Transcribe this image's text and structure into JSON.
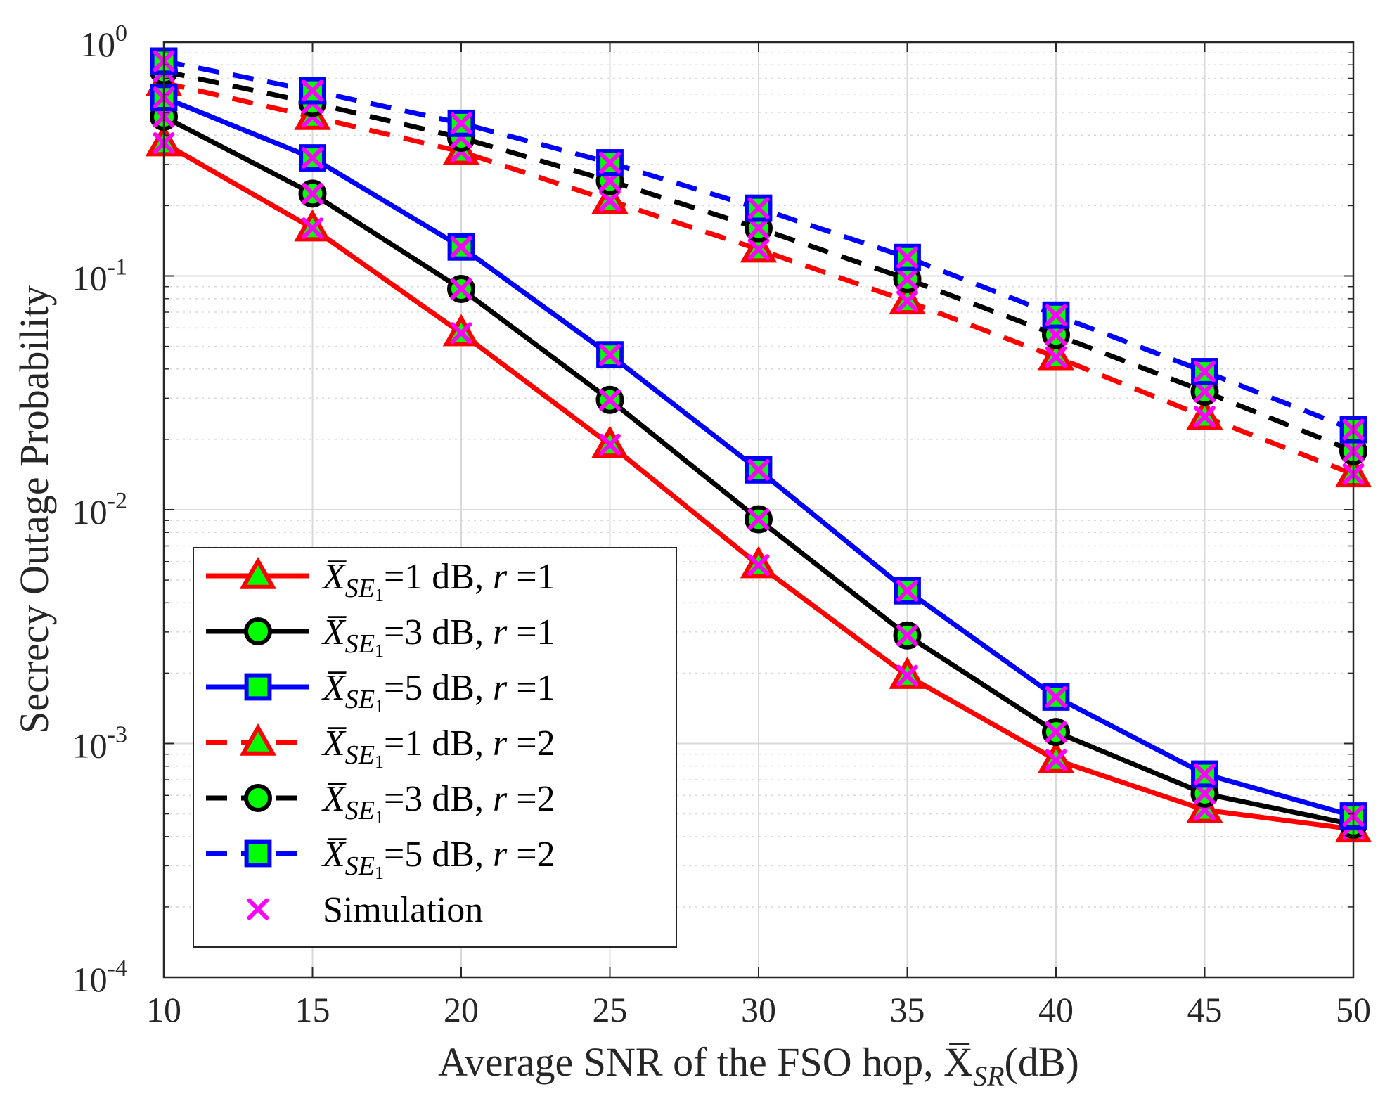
{
  "chart_data": {
    "type": "line",
    "title": "",
    "xlabel": "Average SNR of the FSO hop, X̅",
    "xlabel_sub": "SR",
    "xlabel_suffix": "(dB)",
    "ylabel": "Secrecy Outage Probability",
    "xlim": [
      10,
      50
    ],
    "ylim": [
      0.0001,
      1
    ],
    "yscale": "log",
    "grid": true,
    "legend_position": "bottom-left",
    "x": [
      10,
      15,
      20,
      25,
      30,
      35,
      40,
      45,
      50
    ],
    "x_ticks": [
      "10",
      "15",
      "20",
      "25",
      "30",
      "35",
      "40",
      "45",
      "50"
    ],
    "y_ticks": [
      {
        "value": 1,
        "base": "10",
        "exp": "0"
      },
      {
        "value": 0.1,
        "base": "10",
        "exp": "-1"
      },
      {
        "value": 0.01,
        "base": "10",
        "exp": "-2"
      },
      {
        "value": 0.001,
        "base": "10",
        "exp": "-3"
      },
      {
        "value": 0.0001,
        "base": "10",
        "exp": "-4"
      }
    ],
    "series": [
      {
        "name": "X̅ SE1 =1 dB, r =1",
        "label_pre": "X̅",
        "label_sub": "SE",
        "label_subsub": "1",
        "label_mid": "=1 dB, ",
        "label_var": "r",
        "label_post": " =1",
        "color": "#ff0000",
        "dash": "solid",
        "marker": "triangle",
        "values": [
          0.37,
          0.16,
          0.057,
          0.019,
          0.0058,
          0.00195,
          0.00085,
          0.00052,
          0.00043
        ]
      },
      {
        "name": "X̅ SE1 =3 dB, r =1",
        "label_pre": "X̅",
        "label_sub": "SE",
        "label_subsub": "1",
        "label_mid": "=3 dB, ",
        "label_var": "r",
        "label_post": " =1",
        "color": "#000000",
        "dash": "solid",
        "marker": "circle",
        "values": [
          0.48,
          0.225,
          0.088,
          0.0295,
          0.0091,
          0.0029,
          0.00112,
          0.00061,
          0.00045
        ]
      },
      {
        "name": "X̅ SE1 =5 dB, r =1",
        "label_pre": "X̅",
        "label_sub": "SE",
        "label_subsub": "1",
        "label_mid": "=5 dB, ",
        "label_var": "r",
        "label_post": " =1",
        "color": "#0000ff",
        "dash": "solid",
        "marker": "square",
        "values": [
          0.58,
          0.32,
          0.133,
          0.046,
          0.0148,
          0.0045,
          0.00158,
          0.00074,
          0.00049
        ]
      },
      {
        "name": "X̅ SE1 =1 dB, r =2",
        "label_pre": "X̅",
        "label_sub": "SE",
        "label_subsub": "1",
        "label_mid": "=1 dB, ",
        "label_var": "r",
        "label_post": " =2",
        "color": "#ff0000",
        "dash": "dashed",
        "marker": "triangle",
        "values": [
          0.67,
          0.48,
          0.34,
          0.21,
          0.13,
          0.078,
          0.045,
          0.025,
          0.0142
        ]
      },
      {
        "name": "X̅ SE1 =3 dB, r =2",
        "label_pre": "X̅",
        "label_sub": "SE",
        "label_subsub": "1",
        "label_mid": "=3 dB, ",
        "label_var": "r",
        "label_post": " =2",
        "color": "#000000",
        "dash": "dashed",
        "marker": "circle",
        "values": [
          0.75,
          0.55,
          0.39,
          0.255,
          0.16,
          0.097,
          0.056,
          0.032,
          0.0178
        ]
      },
      {
        "name": "X̅ SE1 =5 dB, r =2",
        "label_pre": "X̅",
        "label_sub": "SE",
        "label_subsub": "1",
        "label_mid": "=5 dB, ",
        "label_var": "r",
        "label_post": " =2",
        "color": "#0000ff",
        "dash": "dashed",
        "marker": "square",
        "values": [
          0.83,
          0.62,
          0.45,
          0.305,
          0.195,
          0.12,
          0.068,
          0.039,
          0.022
        ]
      }
    ],
    "simulation": {
      "name": "Simulation",
      "marker": "x",
      "color": "#ff00ff"
    },
    "colors": {
      "marker_fill": "#00ff00",
      "simulation": "#ff00ff",
      "grid": "#d9d9d9",
      "axis": "#262626"
    }
  }
}
